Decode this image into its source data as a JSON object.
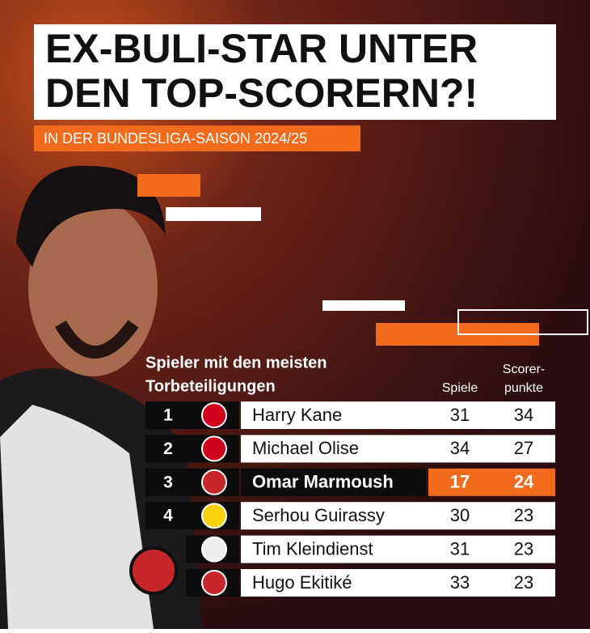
{
  "header": {
    "title_lines": [
      "EX-BULI-STAR UNTER",
      "DEN TOP-SCORERN?!"
    ],
    "subtitle": "IN DER BUNDESLIGA-SAISON 2024/25"
  },
  "table": {
    "heading_lines": [
      "Spieler mit den meisten",
      "Torbeteiligungen"
    ],
    "columns": {
      "games": "Spiele",
      "points_lines": [
        "Scorer-",
        "punkte"
      ]
    },
    "rows": [
      {
        "rank": "1",
        "name": "Harry Kane",
        "games": "31",
        "points": "34"
      },
      {
        "rank": "2",
        "name": "Michael Olise",
        "games": "34",
        "points": "27"
      },
      {
        "rank": "3",
        "name": "Omar Marmoush",
        "games": "17",
        "points": "24",
        "highlight": true
      },
      {
        "rank": "4",
        "name": "Serhou Guirassy",
        "games": "30",
        "points": "23"
      },
      {
        "name": "Tim Kleindienst",
        "games": "31",
        "points": "23"
      },
      {
        "name": "Hugo Ekitiké",
        "games": "33",
        "points": "23"
      }
    ]
  }
}
